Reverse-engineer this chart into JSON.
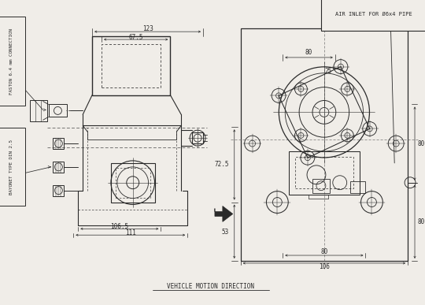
{
  "bg_color": "#f0ede8",
  "line_color": "#2a2a2a",
  "dim_color": "#2a2a2a",
  "text_color": "#2a2a2a",
  "title_bottom": "VEHICLE MOTION DIRECTION",
  "label_faston": "FASTON 6.4 mm CONNECTION",
  "label_bayonet": "BAYONET TYPE DIN 2.5",
  "label_air_inlet": "AIR INLET FOR Ø6x4 PIPE",
  "dim_123": "123",
  "dim_67_5": "67.5",
  "dim_106_5": "106.5",
  "dim_111": "111",
  "dim_106": "106",
  "dim_80_top": "80",
  "dim_53": "53",
  "dim_72_5": "72.5",
  "dim_80_right1": "80",
  "dim_80_right2": "80",
  "dim_25": "25'",
  "dim_80_bottom": "80"
}
